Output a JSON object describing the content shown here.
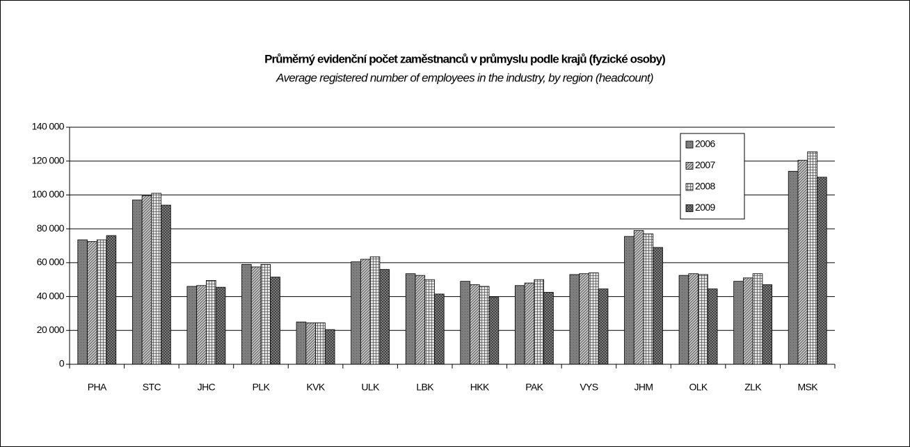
{
  "chart_data": {
    "type": "bar",
    "title": "Průměrný evidenční počet zaměstnanců v průmyslu podle krajů (fyzické osoby)",
    "subtitle": "Average registered number of employees in the industry, by region (headcount)",
    "categories": [
      "PHA",
      "STC",
      "JHC",
      "PLK",
      "KVK",
      "ULK",
      "LBK",
      "HKK",
      "PAK",
      "VYS",
      "JHM",
      "OLK",
      "ZLK",
      "MSK"
    ],
    "series": [
      {
        "name": "2006",
        "color": "#7f7f7f",
        "values": [
          73500,
          97000,
          46000,
          59000,
          25000,
          60500,
          53500,
          49000,
          46500,
          53000,
          75500,
          52500,
          49000,
          114000
        ]
      },
      {
        "name": "2007",
        "color": "#c8c8c8",
        "values": [
          72500,
          99500,
          46500,
          57500,
          24500,
          62000,
          52500,
          47000,
          48000,
          53500,
          79000,
          53500,
          51000,
          120500
        ]
      },
      {
        "name": "2008",
        "color": "#e6e6e6",
        "values": [
          73500,
          101000,
          49500,
          59000,
          24500,
          63500,
          50000,
          46000,
          50000,
          54000,
          77000,
          53000,
          53500,
          125500
        ]
      },
      {
        "name": "2009",
        "color": "#8c8c8c",
        "values": [
          76000,
          94000,
          45500,
          51500,
          20500,
          56000,
          41500,
          39500,
          42500,
          44500,
          69000,
          44500,
          47000,
          110500
        ]
      }
    ],
    "ylim": [
      0,
      140000
    ],
    "yticks": [
      0,
      {
        "value": 20000,
        "label": "20 000"
      },
      {
        "value": 40000,
        "label": "40 000"
      },
      {
        "value": 60000,
        "label": "60 000"
      },
      {
        "value": 80000,
        "label": "80 000"
      },
      {
        "value": 100000,
        "label": "100 000"
      },
      {
        "value": 120000,
        "label": "120 000"
      },
      {
        "value": 140000,
        "label": "140 000"
      }
    ],
    "grid": true,
    "legend": "upper right"
  }
}
